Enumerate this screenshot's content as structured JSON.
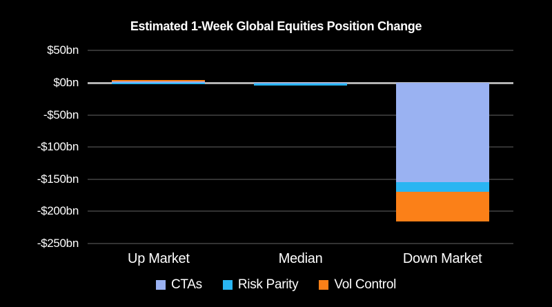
{
  "chart_data": {
    "type": "bar",
    "stacked": true,
    "title": "Estimated 1-Week Global Equities Position Change",
    "categories": [
      "Up Market",
      "Median",
      "Down Market"
    ],
    "series": [
      {
        "name": "CTAs",
        "color": "#9ab2f2",
        "values": [
          2,
          -1,
          -155
        ]
      },
      {
        "name": "Risk Parity",
        "color": "#29b5f2",
        "values": [
          -2,
          -3,
          -14
        ]
      },
      {
        "name": "Vol Control",
        "color": "#fb8018",
        "values": [
          2,
          0,
          -47
        ]
      }
    ],
    "yticks": [
      {
        "value": 50,
        "label": "$50bn"
      },
      {
        "value": 0,
        "label": "$0bn"
      },
      {
        "value": -50,
        "label": "-$50bn"
      },
      {
        "value": -100,
        "label": "-$100bn"
      },
      {
        "value": -150,
        "label": "-$150bn"
      },
      {
        "value": -200,
        "label": "-$200bn"
      },
      {
        "value": -250,
        "label": "-$250bn"
      }
    ],
    "ylim": [
      -250,
      50
    ],
    "xlabel": "",
    "ylabel": "",
    "grid": true,
    "legend_position": "bottom"
  },
  "colors": {
    "background": "#000000",
    "text": "#ffffff",
    "gridline": "#333333",
    "zero_line": "#b3b3b3"
  }
}
